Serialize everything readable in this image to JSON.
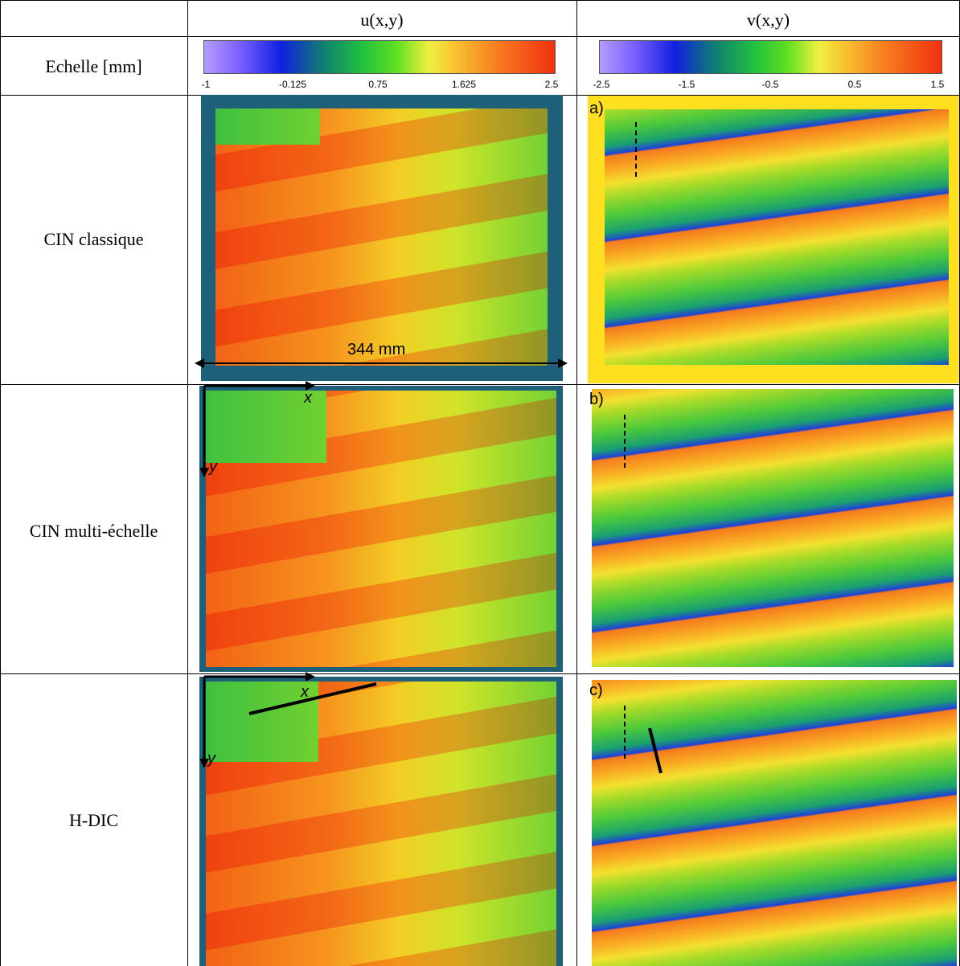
{
  "table": {
    "columns": [
      "u(x,y)",
      "v(x,y)"
    ],
    "scale": {
      "label": "Echelle [mm]",
      "u_ticks": [
        "-1",
        "-0.125",
        "0.75",
        "1.625",
        "2.5"
      ],
      "v_ticks": [
        "-2.5",
        "-1.5",
        "-0.5",
        "0.5",
        "1.5"
      ]
    },
    "rows": [
      {
        "label": "CIN classique",
        "u_annotation": "344 mm",
        "v_annotation": "a)"
      },
      {
        "label": "CIN multi-échelle",
        "u_axes": [
          "x",
          "y"
        ],
        "v_annotation": "b)"
      },
      {
        "label": "H-DIC",
        "u_axes": [
          "x",
          "y"
        ],
        "v_annotation": "c)"
      }
    ]
  }
}
